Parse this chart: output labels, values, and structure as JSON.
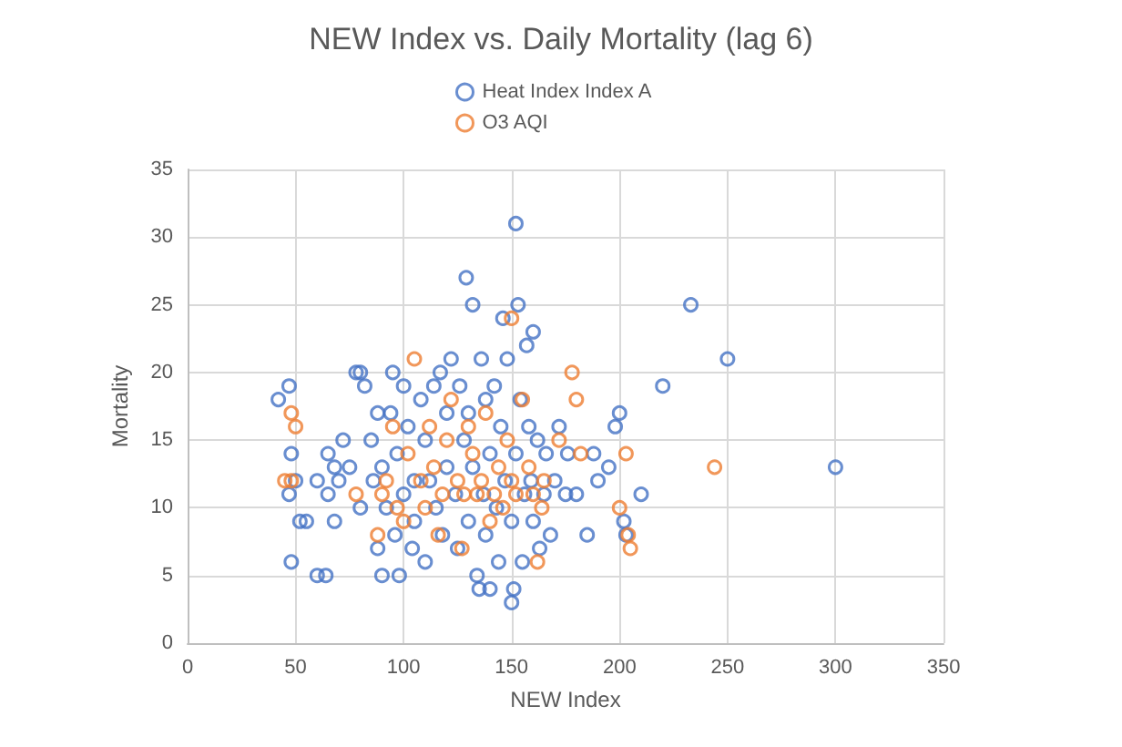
{
  "chart_data": {
    "type": "scatter",
    "title": "NEW Index vs. Daily Mortality (lag 6)",
    "xlabel": "NEW Index",
    "ylabel": "Mortality",
    "xlim": [
      0,
      350
    ],
    "xticks": [
      0,
      50,
      100,
      150,
      200,
      250,
      300,
      350
    ],
    "ylim": [
      0,
      35
    ],
    "yticks": [
      0,
      5,
      10,
      15,
      20,
      25,
      30,
      35
    ],
    "grid": true,
    "legend": "top",
    "marker": "circle",
    "series": [
      {
        "name": "Heat Index Index A",
        "color": "#4472c4",
        "x": [
          42,
          47,
          48,
          47,
          48,
          50,
          52,
          55,
          60,
          60,
          64,
          65,
          65,
          68,
          68,
          70,
          72,
          75,
          78,
          80,
          80,
          82,
          85,
          86,
          88,
          88,
          90,
          90,
          92,
          94,
          95,
          96,
          97,
          98,
          100,
          100,
          102,
          104,
          105,
          105,
          108,
          110,
          110,
          112,
          114,
          115,
          117,
          118,
          120,
          120,
          122,
          124,
          125,
          126,
          128,
          129,
          130,
          130,
          132,
          132,
          134,
          135,
          136,
          137,
          138,
          138,
          140,
          140,
          142,
          143,
          144,
          145,
          146,
          147,
          148,
          150,
          150,
          151,
          152,
          152,
          153,
          154,
          155,
          156,
          157,
          158,
          159,
          160,
          160,
          162,
          163,
          165,
          166,
          168,
          170,
          172,
          175,
          176,
          180,
          185,
          188,
          190,
          195,
          198,
          200,
          202,
          203,
          210,
          220,
          233,
          250,
          300
        ],
        "values": [
          18,
          19,
          14,
          11,
          6,
          12,
          9,
          9,
          12,
          5,
          5,
          11,
          14,
          13,
          9,
          12,
          15,
          13,
          20,
          20,
          10,
          19,
          15,
          12,
          17,
          7,
          5,
          13,
          10,
          17,
          20,
          8,
          14,
          5,
          19,
          11,
          16,
          7,
          12,
          9,
          18,
          15,
          6,
          12,
          19,
          10,
          20,
          8,
          17,
          13,
          21,
          11,
          7,
          19,
          15,
          27,
          9,
          17,
          25,
          13,
          5,
          4,
          21,
          11,
          18,
          8,
          4,
          14,
          19,
          10,
          6,
          16,
          24,
          12,
          21,
          3,
          9,
          4,
          31,
          14,
          25,
          18,
          6,
          11,
          22,
          16,
          12,
          9,
          23,
          15,
          7,
          11,
          14,
          8,
          12,
          16,
          11,
          14,
          11,
          8,
          14,
          12,
          13,
          16,
          17,
          9,
          8,
          11,
          19,
          25,
          21,
          13
        ]
      },
      {
        "name": "O3 AQI",
        "color": "#ed7d31",
        "x": [
          45,
          48,
          50,
          48,
          78,
          88,
          90,
          92,
          95,
          97,
          100,
          102,
          105,
          108,
          110,
          112,
          114,
          116,
          118,
          120,
          122,
          125,
          127,
          128,
          130,
          132,
          134,
          136,
          138,
          140,
          142,
          144,
          146,
          148,
          150,
          150,
          152,
          155,
          158,
          160,
          162,
          164,
          165,
          172,
          178,
          180,
          182,
          200,
          203,
          205,
          204,
          244
        ],
        "values": [
          12,
          17,
          16,
          12,
          11,
          8,
          11,
          12,
          16,
          10,
          9,
          14,
          21,
          12,
          10,
          16,
          13,
          8,
          11,
          15,
          18,
          12,
          7,
          11,
          16,
          14,
          11,
          12,
          17,
          9,
          11,
          13,
          10,
          15,
          24,
          12,
          11,
          18,
          13,
          11,
          6,
          10,
          12,
          15,
          20,
          18,
          14,
          10,
          14,
          7,
          8,
          13
        ]
      }
    ]
  }
}
